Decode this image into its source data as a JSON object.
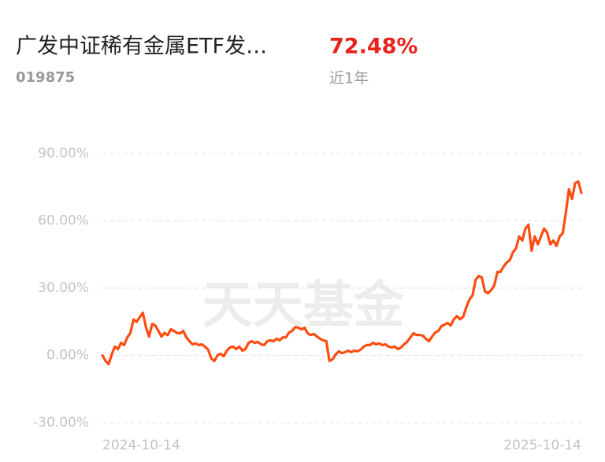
{
  "chart_data": {
    "type": "line",
    "title": "广发中证稀有金属ETF发…",
    "subtitle": "019875",
    "headline": "72.48%",
    "period": "近1年",
    "watermark": "天天基金",
    "color": "#ff4d12",
    "headline_color": "#e8231b",
    "grid": true,
    "ylim": [
      -30,
      90
    ],
    "yticks": [
      {
        "value": -30,
        "label": "-30.00%"
      },
      {
        "value": 0,
        "label": "0.00%"
      },
      {
        "value": 30,
        "label": "30.00%"
      },
      {
        "value": 60,
        "label": "60.00%"
      },
      {
        "value": 90,
        "label": "90.00%"
      }
    ],
    "categories": [
      "2024-10-14",
      null,
      null,
      null,
      null,
      null,
      null,
      null,
      null,
      null,
      null,
      null,
      null,
      null,
      null,
      null,
      null,
      null,
      null,
      null,
      null,
      null,
      null,
      null,
      null,
      null,
      null,
      null,
      null,
      null,
      null,
      null,
      null,
      null,
      null,
      null,
      null,
      null,
      null,
      null,
      null,
      null,
      null,
      null,
      null,
      null,
      null,
      null,
      null,
      null,
      null,
      null,
      null,
      null,
      null,
      null,
      null,
      null,
      null,
      null,
      null,
      null,
      null,
      null,
      null,
      null,
      null,
      null,
      null,
      null,
      null,
      null,
      null,
      null,
      null,
      null,
      null,
      null,
      null,
      null,
      null,
      null,
      null,
      null,
      null,
      null,
      null,
      null,
      null,
      null,
      null,
      null,
      null,
      null,
      null,
      null,
      null,
      null,
      null,
      null,
      null,
      null,
      null,
      null,
      null,
      null,
      null,
      null,
      null,
      null,
      null,
      null,
      null,
      null,
      null,
      null,
      null,
      null,
      null,
      null,
      null,
      null,
      null,
      null,
      null,
      null,
      null,
      null,
      null,
      null,
      null,
      null,
      null,
      null,
      null,
      null,
      null,
      null,
      null,
      null,
      null,
      null,
      null,
      null,
      null,
      null,
      null,
      null,
      null,
      null,
      null,
      null,
      null,
      null,
      "2025-10-14"
    ],
    "values": [
      0,
      -2.5,
      -3.9,
      0.4,
      3.9,
      2.8,
      5.6,
      4.6,
      8,
      10,
      16,
      15,
      17,
      19,
      12.6,
      8.4,
      14,
      13.3,
      10.9,
      8.4,
      10,
      9,
      11.6,
      10.9,
      10,
      9.8,
      10.9,
      8,
      6.3,
      4.9,
      5.3,
      4.6,
      4.9,
      3.9,
      2.5,
      -1.4,
      -2.5,
      0,
      0.7,
      -0.4,
      2.1,
      3.5,
      3.9,
      2.8,
      3.9,
      2.1,
      2.8,
      5.6,
      6.3,
      5.6,
      6,
      4.9,
      4.6,
      6.3,
      6.7,
      6.3,
      7.4,
      6.7,
      8,
      8,
      10.2,
      10.9,
      12.6,
      12.3,
      11.6,
      12.3,
      9.8,
      9.1,
      9.5,
      8.4,
      7.4,
      6.7,
      6.3,
      -2.5,
      -1.8,
      0.4,
      1.8,
      1,
      1.4,
      2.1,
      1.4,
      2.1,
      1.8,
      2.5,
      3.9,
      4.6,
      4.6,
      5.6,
      4.9,
      5.3,
      4.6,
      4.9,
      3.9,
      3.5,
      3.9,
      2.8,
      3.5,
      4.9,
      6,
      8,
      9.8,
      9.1,
      9.1,
      8.8,
      7.4,
      6.3,
      8.4,
      10.2,
      10.9,
      13,
      13.7,
      14.4,
      13.3,
      16.1,
      17.5,
      16.1,
      17.2,
      21.4,
      24.9,
      26.7,
      33.7,
      35.4,
      34.7,
      28.4,
      27.7,
      29.1,
      31.2,
      37.2,
      37.2,
      39.6,
      41.4,
      42.5,
      46,
      47.7,
      53,
      51.2,
      56.5,
      58.2,
      46.7,
      53,
      49.5,
      53,
      56.5,
      54.7,
      49.5,
      51.2,
      48.8,
      53,
      54.4,
      63.5,
      74,
      69.8,
      76.8,
      77.5,
      72.48
    ]
  }
}
